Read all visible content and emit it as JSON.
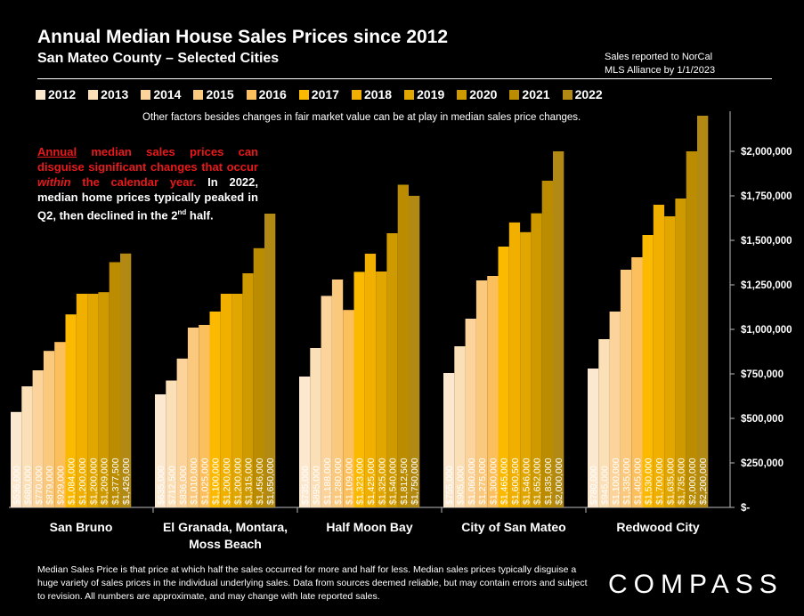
{
  "header": {
    "title": "Annual Median House Sales Prices since 2012",
    "subtitle": "San Mateo County – Selected Cities",
    "source_line1": "Sales reported to NorCal",
    "source_line2": "MLS Alliance by 1/1/2023"
  },
  "note": "Other factors besides changes in fair market value can be at play in median sales price changes.",
  "callout": {
    "red_underlined": "Annual",
    "red_part1": " median sales prices can disguise significant changes that occur ",
    "red_italic": "within",
    "red_part2": " the calendar year.",
    "white_part1": " In 2022, median home prices typically peaked in Q2, then declined in the 2",
    "superscript": "nd",
    "white_part2": " half."
  },
  "footer": "Median Sales Price is that price at which half the sales occurred for more and half for less. Median sales prices typically disguise a huge variety of sales prices in the individual underlying sales. Data from sources deemed reliable, but may contain errors and subject to revision.  All numbers are approximate, and may change with late reported sales.",
  "logo": "COMPASS",
  "chart_data": {
    "type": "bar",
    "title": "Annual Median House Sales Prices since 2012",
    "categories": [
      "San Bruno",
      "El Granada, Montara, Moss Beach",
      "Half Moon Bay",
      "City of San Mateo",
      "Redwood City"
    ],
    "category_lines": [
      [
        "San Bruno"
      ],
      [
        "El Granada, Montara,",
        "Moss Beach"
      ],
      [
        "Half Moon Bay"
      ],
      [
        "City of San Mateo"
      ],
      [
        "Redwood City"
      ]
    ],
    "series_names": [
      "2012",
      "2013",
      "2014",
      "2015",
      "2016",
      "2017",
      "2018",
      "2019",
      "2020",
      "2021",
      "2022"
    ],
    "series_colors": [
      "#fbe8cf",
      "#fbdfb7",
      "#fcd39a",
      "#fbc97d",
      "#fcbf5d",
      "#fbb900",
      "#f1b000",
      "#e2a600",
      "#cf9a00",
      "#bb8c00",
      "#b28a13"
    ],
    "values": [
      [
        536000,
        680000,
        770000,
        879000,
        929000,
        1084000,
        1200000,
        1200000,
        1209000,
        1377500,
        1426000
      ],
      [
        635000,
        712500,
        836000,
        1010000,
        1025000,
        1100000,
        1200000,
        1200000,
        1315000,
        1456000,
        1650000
      ],
      [
        735000,
        895000,
        1188000,
        1280000,
        1109000,
        1323000,
        1425000,
        1325000,
        1540000,
        1812500,
        1750000
      ],
      [
        755000,
        905000,
        1060000,
        1275000,
        1300000,
        1465000,
        1600500,
        1546000,
        1652000,
        1835000,
        2000000
      ],
      [
        780000,
        945000,
        1100000,
        1335000,
        1405000,
        1530000,
        1700000,
        1635000,
        1735000,
        2000000,
        2200000
      ]
    ],
    "data_labels": [
      [
        "$536,000",
        "$680,000",
        "$770,000",
        "$879,000",
        "$929,000",
        "$1,084,000",
        "$1,200,000",
        "$1,200,000",
        "$1,209,000",
        "$1,377,500",
        "$1,426,000"
      ],
      [
        "$635,000",
        "$712,500",
        "$836,000",
        "$1,010,000",
        "$1,025,000",
        "$1,100,000",
        "$1,200,000",
        "$1,200,000",
        "$1,315,000",
        "$1,456,000",
        "$1,650,000"
      ],
      [
        "$735,000",
        "$895,000",
        "$1,188,000",
        "$1,280,000",
        "$1,109,000",
        "$1,323,000",
        "$1,425,000",
        "$1,325,000",
        "$1,540,000",
        "$1,812,500",
        "$1,750,000"
      ],
      [
        "$755,000",
        "$905,000",
        "$1,060,000",
        "$1,275,000",
        "$1,300,000",
        "$1,465,000",
        "$1,600,500",
        "$1,546,000",
        "$1,652,000",
        "$1,835,000",
        "$2,000,000"
      ],
      [
        "$780,000",
        "$945,000",
        "$1,100,000",
        "$1,335,000",
        "$1,405,000",
        "$1,530,000",
        "$1,700,000",
        "$1,635,000",
        "$1,735,000",
        "$2,000,000",
        "$2,200,000"
      ]
    ],
    "ylim": [
      0,
      2200000
    ],
    "yticks": [
      0,
      250000,
      500000,
      750000,
      1000000,
      1250000,
      1500000,
      1750000,
      2000000
    ],
    "ytick_labels": [
      "$-",
      "$250,000",
      "$500,000",
      "$750,000",
      "$1,000,000",
      "$1,250,000",
      "$1,500,000",
      "$1,750,000",
      "$2,000,000"
    ],
    "axis_position": "right",
    "legend_position": "top",
    "grid": false
  }
}
